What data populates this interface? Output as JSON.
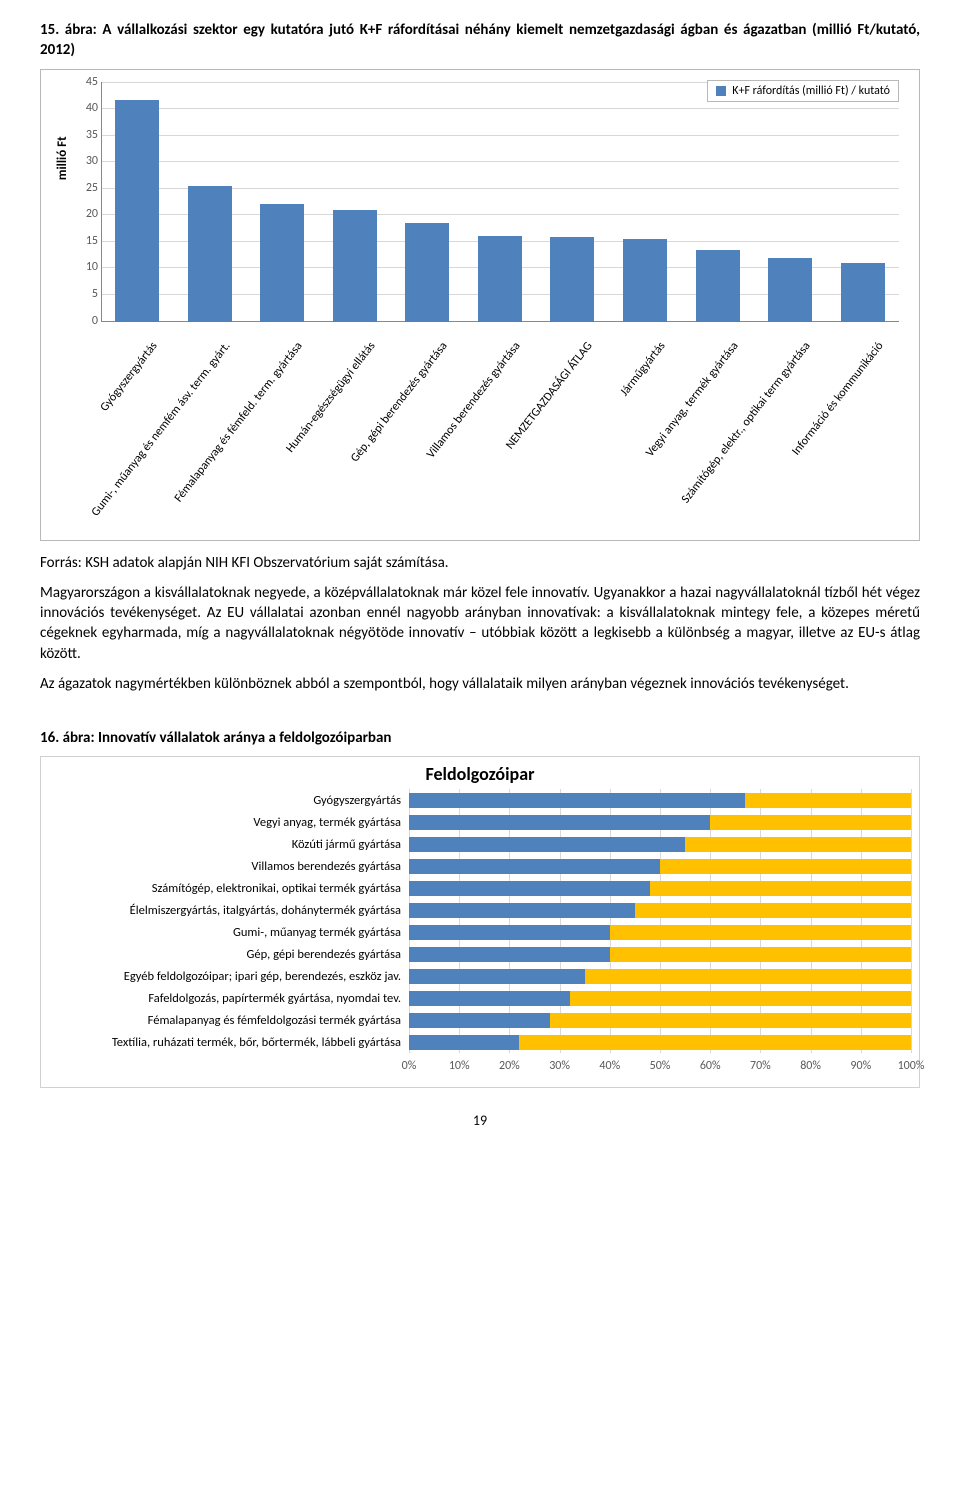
{
  "fig1": {
    "title_prefix": "15. ábra:",
    "title_rest": " A vállalkozási szektor egy kutatóra jutó K+F ráfordításai néhány kiemelt nemzetgazdasági ágban és ágazatban (millió Ft/kutató, 2012)",
    "legend": "K+F ráfordítás (millió Ft) / kutató",
    "ylabel": "millió Ft",
    "ymax": 45,
    "ytick_step": 5,
    "bar_color": "#4f81bd",
    "grid_color": "#d8d8d8",
    "categories": [
      "Gyógyszergyártás",
      "Gumi-, műanyag és nemfém ásv. term. gyárt.",
      "Fémalapanyag és fémfeld. term. gyártása",
      "Humán-egészségügyi ellátás",
      "Gép, gépi berendezés gyártása",
      "Villamos berendezés gyártása",
      "NEMZETGAZDASÁGI ÁTLAG",
      "Járműgyártás",
      "Vegyi anyag, termék gyártása",
      "Számítógép, elektr., optikai term gyártása",
      "Információ és kommunikáció"
    ],
    "values": [
      41.5,
      25.5,
      22,
      21,
      18.5,
      16,
      15.8,
      15.5,
      13.5,
      12,
      11
    ]
  },
  "source_line": "Forrás: KSH adatok alapján NIH KFI Obszervatórium saját számítása.",
  "para1": "Magyarországon a kisvállalatoknak negyede, a középvállalatoknak már közel fele innovatív. Ugyanakkor a hazai nagyvállalatoknál tízből hét végez innovációs tevékenységet. Az EU vállalatai azonban ennél nagyobb arányban innovatívak: a kisvállalatoknak mintegy fele, a közepes méretű cégeknek egyharmada, míg a nagyvállalatoknak négyötöde innovatív – utóbbiak között a legkisebb a különbség a magyar, illetve az EU-s átlag között.",
  "para2": "Az ágazatok nagymértékben különböznek abból a szempontból, hogy vállalataik milyen arányban végeznek innovációs tevékenységet.",
  "fig2": {
    "title_prefix": "16. ábra:",
    "title_rest": " Innovatív vállalatok aránya a feldolgozóiparban",
    "chart_title": "Feldolgozóipar",
    "color_a": "#4f81bd",
    "color_b": "#ffc000",
    "xmax": 100,
    "xtick_step": 10,
    "rows": [
      {
        "label": "Gyógyszergyártás",
        "a": 67,
        "b": 33
      },
      {
        "label": "Vegyi anyag, termék gyártása",
        "a": 60,
        "b": 40
      },
      {
        "label": "Közúti jármű gyártása",
        "a": 55,
        "b": 45
      },
      {
        "label": "Villamos berendezés gyártása",
        "a": 50,
        "b": 50
      },
      {
        "label": "Számítógép, elektronikai, optikai termék gyártása",
        "a": 48,
        "b": 52
      },
      {
        "label": "Élelmiszergyártás, italgyártás, dohánytermék gyártása",
        "a": 45,
        "b": 55
      },
      {
        "label": "Gumi-, műanyag termék gyártása",
        "a": 40,
        "b": 60
      },
      {
        "label": "Gép, gépi berendezés gyártása",
        "a": 40,
        "b": 60
      },
      {
        "label": "Egyéb feldolgozóipar; ipari gép, berendezés, eszköz jav.",
        "a": 35,
        "b": 65
      },
      {
        "label": "Fafeldolgozás, papírtermék gyártása, nyomdai tev.",
        "a": 32,
        "b": 68
      },
      {
        "label": "Fémalapanyag és fémfeldolgozási termék gyártása",
        "a": 28,
        "b": 72
      },
      {
        "label": "Textília, ruházati termék, bőr, bőrtermék, lábbeli gyártása",
        "a": 22,
        "b": 78
      }
    ]
  },
  "page_number": "19"
}
